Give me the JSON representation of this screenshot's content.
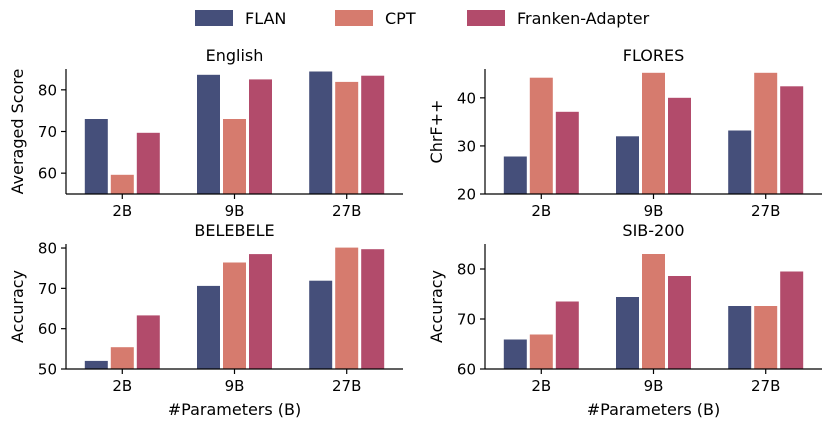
{
  "chart_data": {
    "type": "bar",
    "legend": {
      "placement": "top-center",
      "entries": [
        "FLAN",
        "CPT",
        "Franken-Adapter"
      ]
    },
    "colors": {
      "FLAN": "#454f7a",
      "CPT": "#d67b6e",
      "Franken-Adapter": "#b24b6b"
    },
    "xlabel": "#Parameters (B)",
    "categories": [
      "2B",
      "9B",
      "27B"
    ],
    "panels": [
      {
        "title": "English",
        "ylabel": "Averaged Score",
        "ylim": [
          55,
          85
        ],
        "yticks": [
          60,
          70,
          80
        ],
        "show_xlabel": false,
        "series": [
          {
            "name": "FLAN",
            "values": [
              73.0,
              83.6,
              84.4
            ]
          },
          {
            "name": "CPT",
            "values": [
              59.6,
              73.0,
              81.9
            ]
          },
          {
            "name": "Franken-Adapter",
            "values": [
              69.7,
              82.5,
              83.4
            ]
          }
        ]
      },
      {
        "title": "FLORES",
        "ylabel": "ChrF++",
        "ylim": [
          20,
          46
        ],
        "yticks": [
          20,
          30,
          40
        ],
        "show_xlabel": false,
        "series": [
          {
            "name": "FLAN",
            "values": [
              27.8,
              32.0,
              33.2
            ]
          },
          {
            "name": "CPT",
            "values": [
              44.2,
              45.2,
              45.2
            ]
          },
          {
            "name": "Franken-Adapter",
            "values": [
              37.1,
              40.0,
              42.4
            ]
          }
        ]
      },
      {
        "title": "BELEBELE",
        "ylabel": "Accuracy",
        "ylim": [
          50,
          81
        ],
        "yticks": [
          50,
          60,
          70,
          80
        ],
        "show_xlabel": true,
        "series": [
          {
            "name": "FLAN",
            "values": [
              52.0,
              70.6,
              71.9
            ]
          },
          {
            "name": "CPT",
            "values": [
              55.4,
              76.4,
              80.1
            ]
          },
          {
            "name": "Franken-Adapter",
            "values": [
              63.3,
              78.5,
              79.7
            ]
          }
        ]
      },
      {
        "title": "SIB-200",
        "ylabel": "Accuracy",
        "ylim": [
          60,
          85
        ],
        "yticks": [
          60,
          70,
          80
        ],
        "show_xlabel": true,
        "series": [
          {
            "name": "FLAN",
            "values": [
              65.9,
              74.4,
              72.6
            ]
          },
          {
            "name": "CPT",
            "values": [
              66.9,
              83.0,
              72.6
            ]
          },
          {
            "name": "Franken-Adapter",
            "values": [
              73.5,
              78.6,
              79.5
            ]
          }
        ]
      }
    ]
  }
}
